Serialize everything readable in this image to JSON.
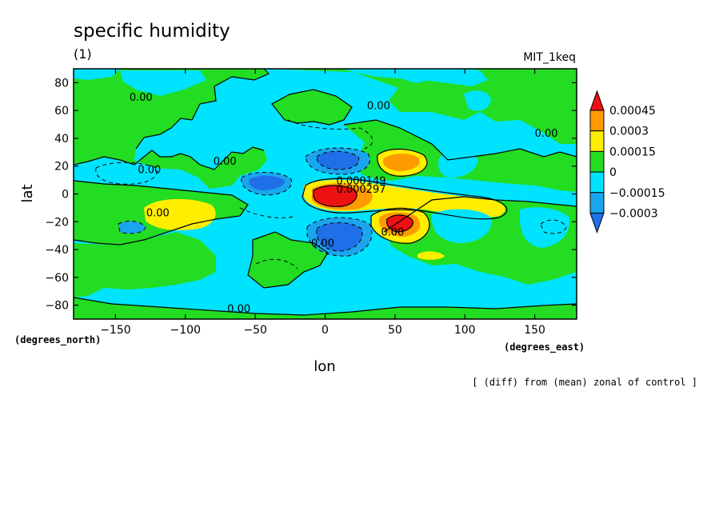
{
  "title": "specific humidity",
  "subtitle": "(1)",
  "model_label": "MIT_1keq",
  "x_unit_label": "(degrees_east)",
  "y_unit_label": "(degrees_north)",
  "note": "[ (diff) from (mean) zonal of control ]",
  "colors": {
    "lt_neg2": "#1f6fe8",
    "neg2_neg1": "#1aa6ee",
    "neg1_0": "#00e3ff",
    "p0_p1": "#22dd22",
    "p1_p2": "#ffee00",
    "p2_p3": "#ff9a00",
    "gt_p3": "#ee1111"
  },
  "chart_data": {
    "type": "contour",
    "title": "specific humidity",
    "xlabel": "lon",
    "ylabel": "lat",
    "xlim": [
      -180,
      180
    ],
    "ylim": [
      -90,
      90
    ],
    "xticks": [
      -150,
      -100,
      -50,
      0,
      50,
      100,
      150
    ],
    "yticks": [
      80,
      60,
      40,
      20,
      0,
      -20,
      -40,
      -60,
      -80
    ],
    "colorbar_levels": [
      "0.00045",
      "0.0003",
      "0.00015",
      "0",
      "-0.00015",
      "-0.0003"
    ],
    "contour_labels": [
      "0.00",
      "0.00",
      "0.00",
      "0.00",
      "0.00",
      "0.00",
      "0.00",
      "0.00",
      "0.00",
      "0.000149",
      "0.000297"
    ],
    "features": [
      {
        "name": "max-west-africa",
        "lon": 10,
        "lat": -1,
        "value_band": "gt_p3"
      },
      {
        "name": "max-east-africa",
        "lon": 51,
        "lat": -20,
        "value_band": "gt_p3"
      },
      {
        "name": "plus-arabia",
        "lon": 52,
        "lat": 22,
        "value_band": "p2_p3"
      },
      {
        "name": "plus-pacific",
        "lon": -103,
        "lat": -14,
        "value_band": "p1_p2"
      },
      {
        "name": "min-north-africa",
        "lon": 10,
        "lat": 23,
        "value_band": "lt_neg2"
      },
      {
        "name": "min-south-africa",
        "lon": 14,
        "lat": -25,
        "value_band": "lt_neg2"
      },
      {
        "name": "min-atlantic",
        "lon": -38,
        "lat": 7,
        "value_band": "lt_neg2"
      }
    ]
  }
}
